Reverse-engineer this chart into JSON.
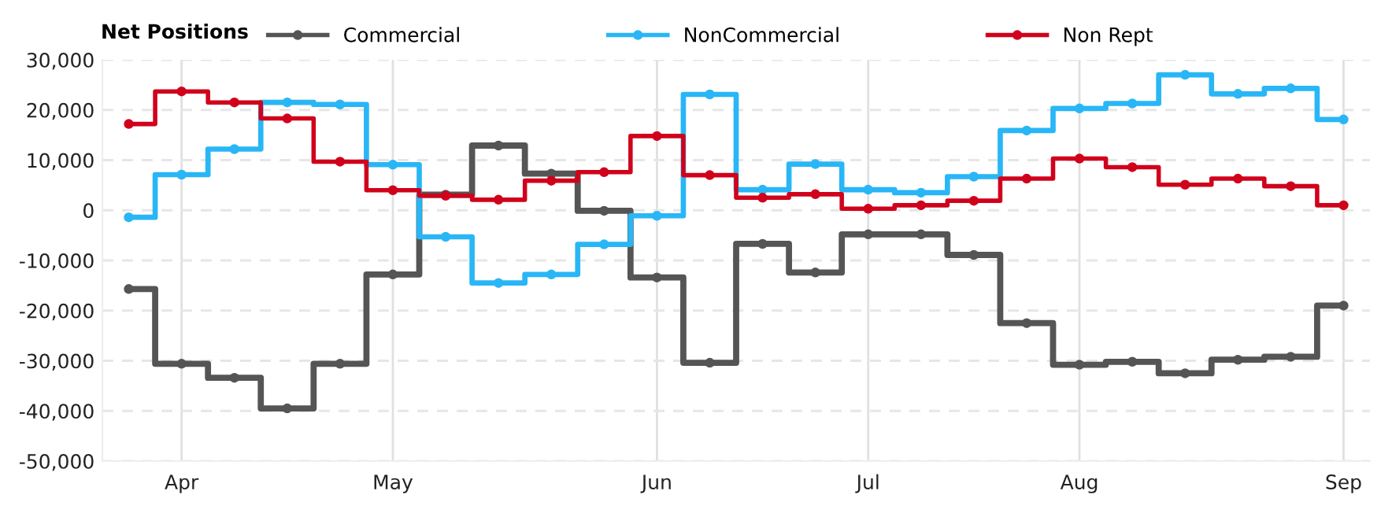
{
  "chart_data": {
    "type": "step",
    "legend_title": "Net Positions",
    "categories": [
      null,
      "Apr",
      null,
      null,
      null,
      "May",
      null,
      null,
      null,
      null,
      "Jun",
      null,
      null,
      null,
      "Jul",
      null,
      null,
      null,
      "Aug",
      null,
      null,
      null,
      null,
      "Sep"
    ],
    "series": [
      {
        "name": "Commercial",
        "color": "#555555",
        "values": [
          -15700,
          -30600,
          -33400,
          -39500,
          -30600,
          -12800,
          3100,
          12900,
          7300,
          -100,
          -13400,
          -30400,
          -6700,
          -12400,
          -4800,
          -4800,
          -8900,
          -22500,
          -30800,
          -30200,
          -32500,
          -29800,
          -29200,
          -19000
        ]
      },
      {
        "name": "NonCommercial",
        "color": "#29b6f6",
        "values": [
          -1400,
          7100,
          12200,
          21500,
          21100,
          9100,
          -5300,
          -14500,
          -12800,
          -6800,
          -1100,
          23100,
          4100,
          9200,
          4100,
          3500,
          6700,
          15900,
          20300,
          21300,
          27000,
          23200,
          24300,
          18100
        ]
      },
      {
        "name": "Non Rept",
        "color": "#d0021b",
        "values": [
          17200,
          23700,
          21500,
          18300,
          9700,
          4000,
          2900,
          2100,
          5900,
          7600,
          14800,
          7000,
          2500,
          3200,
          300,
          1000,
          1900,
          6300,
          10300,
          8600,
          5100,
          6300,
          4800,
          1000
        ]
      }
    ],
    "ylim": [
      -50000,
      30000
    ],
    "yticks": [
      {
        "value": -50000,
        "label": "-50,000"
      },
      {
        "value": -40000,
        "label": "-40,000"
      },
      {
        "value": -30000,
        "label": "-30,000"
      },
      {
        "value": -20000,
        "label": "-20,000"
      },
      {
        "value": -10000,
        "label": "-10,000"
      },
      0,
      {
        "value": 10000,
        "label": "10,000"
      },
      {
        "value": 20000,
        "label": "20,000"
      },
      {
        "value": 30000,
        "label": "30,000"
      }
    ],
    "grid": true,
    "legend": "top",
    "marker": "circle",
    "line_style": "solid"
  }
}
